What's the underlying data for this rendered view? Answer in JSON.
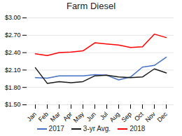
{
  "chart_data": {
    "type": "line",
    "title": "Farm Diesel",
    "categories": [
      "Jan",
      "Feb",
      "Mar",
      "Apr",
      "May",
      "Jun",
      "Jul",
      "Aug",
      "Sep",
      "Oct",
      "Nov",
      "Dec"
    ],
    "series": [
      {
        "name": "2017",
        "color": "#4472c4",
        "values": [
          1.97,
          1.96,
          2.0,
          2.0,
          2.0,
          2.02,
          2.01,
          1.93,
          1.98,
          2.15,
          2.18,
          2.32
        ]
      },
      {
        "name": "3-yr Avg.",
        "color": "#1a1a1a",
        "values": [
          2.14,
          1.87,
          1.9,
          1.88,
          1.9,
          2.0,
          2.01,
          1.98,
          1.97,
          1.98,
          2.12,
          2.05
        ]
      },
      {
        "name": "2018",
        "color": "#ff0000",
        "values": [
          2.38,
          2.35,
          2.4,
          2.41,
          2.43,
          2.57,
          2.55,
          2.53,
          2.49,
          2.5,
          2.72,
          2.66
        ]
      }
    ],
    "ylim": [
      1.5,
      3.0
    ],
    "yticks": [
      {
        "value": 1.5,
        "label": "$1.50"
      },
      {
        "value": 1.8,
        "label": "$1.80"
      },
      {
        "value": 2.1,
        "label": "$2.10"
      },
      {
        "value": 2.4,
        "label": "$2.40"
      },
      {
        "value": 2.7,
        "label": "$2.70"
      },
      {
        "value": 3.0,
        "label": "$3.00"
      }
    ],
    "grid": true,
    "legend": "bottom"
  }
}
